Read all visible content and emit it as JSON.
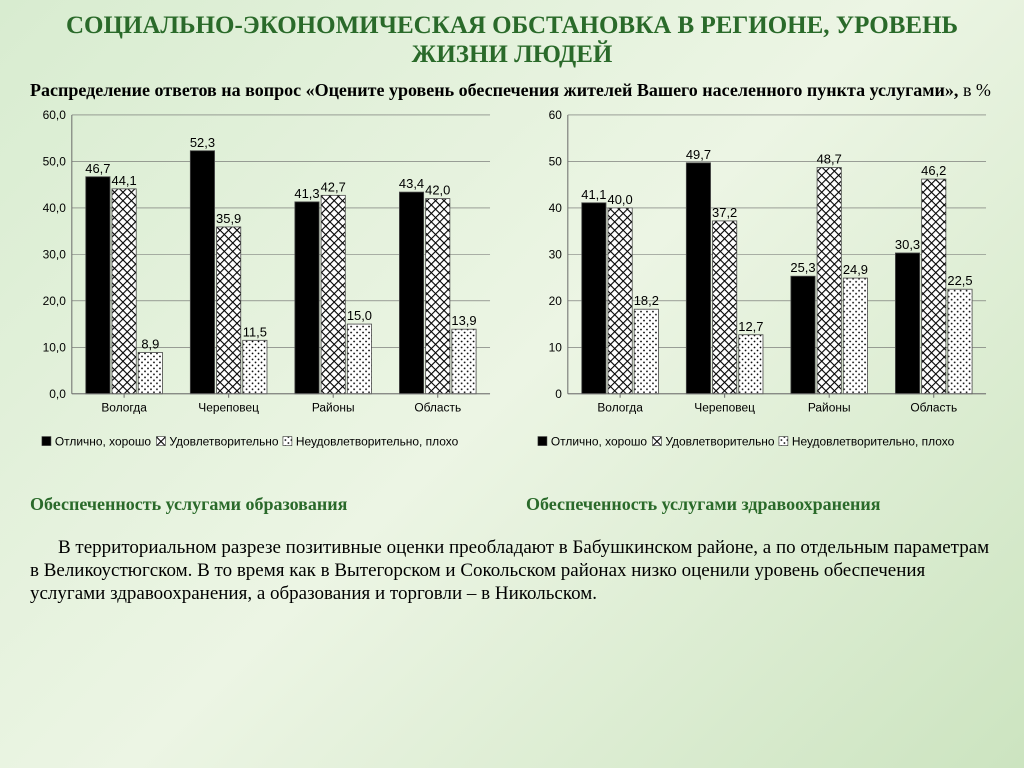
{
  "title": "СОЦИАЛЬНО-ЭКОНОМИЧЕСКАЯ ОБСТАНОВКА В РЕГИОНЕ, УРОВЕНЬ ЖИЗНИ ЛЮДЕЙ",
  "subtitle_bold": "Распределение ответов на вопрос «Оцените уровень обеспечения жителей Вашего населенного пункта услугами», ",
  "subtitle_pct": "в %",
  "chart_left": {
    "type": "bar",
    "caption": "Обеспеченность услугами образования",
    "categories": [
      "Вологда",
      "Череповец",
      "Районы",
      "Область"
    ],
    "ylim": [
      0,
      60
    ],
    "ytick_step": 10,
    "decimal_ticks": true,
    "series": [
      {
        "name": "Отлично, хорошо",
        "pattern": "solid",
        "values": [
          46.7,
          52.3,
          41.3,
          43.4
        ]
      },
      {
        "name": "Удовлетворительно",
        "pattern": "diamond",
        "values": [
          44.1,
          35.9,
          42.7,
          42.0
        ]
      },
      {
        "name": "Неудовлетворительно, плохо",
        "pattern": "dots",
        "values": [
          8.9,
          11.5,
          15.0,
          13.9
        ]
      }
    ],
    "bar_fill": "#000000",
    "bar_stroke": "#4a4a4a",
    "plot_bg": "#e4f2da",
    "grid_color": "#6a6a6a",
    "text_color": "#000000",
    "font_size_axis": 12,
    "font_size_label": 13,
    "font_size_legend": 12
  },
  "chart_right": {
    "type": "bar",
    "caption": "Обеспеченность услугами здравоохранения",
    "categories": [
      "Вологда",
      "Череповец",
      "Районы",
      "Область"
    ],
    "ylim": [
      0,
      60
    ],
    "ytick_step": 10,
    "decimal_ticks": false,
    "series": [
      {
        "name": "Отлично, хорошо",
        "pattern": "solid",
        "values": [
          41.1,
          49.7,
          25.3,
          30.3
        ]
      },
      {
        "name": "Удовлетворительно",
        "pattern": "diamond",
        "values": [
          40.0,
          37.2,
          48.7,
          46.2
        ]
      },
      {
        "name": "Неудовлетворительно, плохо",
        "pattern": "dots",
        "values": [
          18.2,
          12.7,
          24.9,
          22.5
        ]
      }
    ],
    "bar_fill": "#000000",
    "bar_stroke": "#4a4a4a",
    "plot_bg": "#e4f2da",
    "grid_color": "#6a6a6a",
    "text_color": "#000000",
    "font_size_axis": 12,
    "font_size_label": 13,
    "font_size_legend": 12
  },
  "bottom_paragraph": "В территориальном разрезе позитивные оценки преобладают в Бабушкинском районе, а по отдельным параметрам в Великоустюгском. В то время как в Вытегорском и Сокольском районах низко оценили уровень обеспечения услугами здравоохранения, а образования и торговли – в Никольском."
}
